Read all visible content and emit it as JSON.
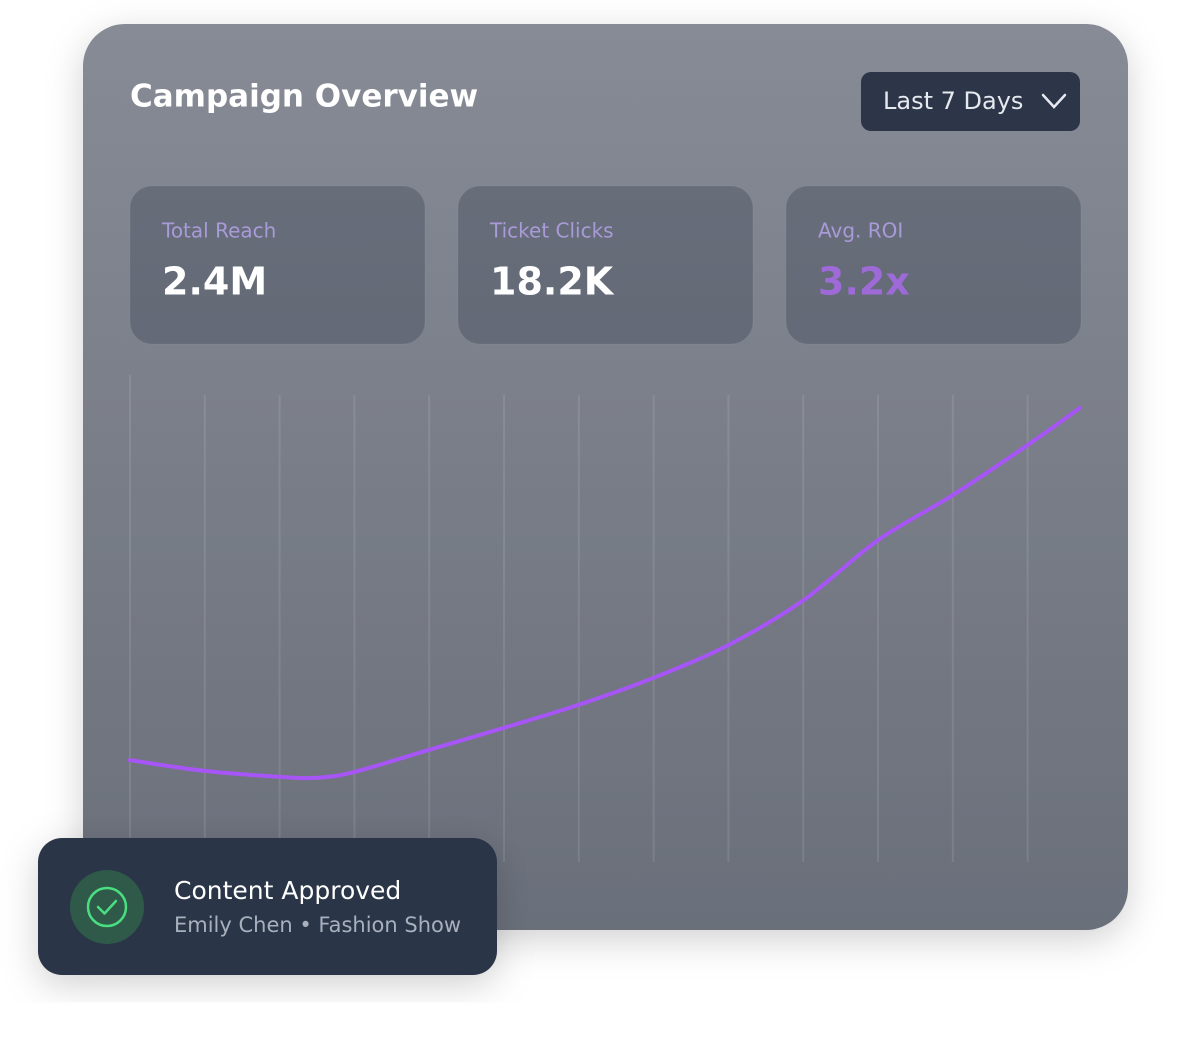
{
  "header": {
    "title": "Campaign Overview",
    "range": "Last 7 Days"
  },
  "stats": [
    {
      "label": "Total Reach",
      "value": "2.4M"
    },
    {
      "label": "Ticket Clicks",
      "value": "18.2K"
    },
    {
      "label": "Avg. ROI",
      "value": "3.2x"
    }
  ],
  "chart_data": {
    "type": "line",
    "x": [
      0,
      1,
      2,
      2.5,
      3,
      4,
      5,
      6,
      7,
      8,
      9,
      10,
      11,
      12,
      12.7
    ],
    "values": [
      21.4,
      19.2,
      18,
      17.8,
      19,
      23.5,
      28,
      32.7,
      38.2,
      44.9,
      54,
      66.3,
      75.5,
      85.7,
      93.3
    ],
    "xlim": [
      0,
      12.7
    ],
    "ylim": [
      0,
      100
    ],
    "xticks": [
      0,
      1,
      2,
      3,
      4,
      5,
      6,
      7,
      8,
      9,
      10,
      11,
      12
    ],
    "color": "#a855f7",
    "grid": true
  },
  "notification": {
    "title": "Content Approved",
    "subtitle": "Emily Chen • Fashion Show"
  }
}
